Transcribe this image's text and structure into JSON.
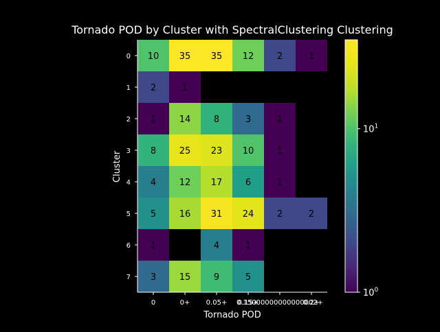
{
  "chart_data": {
    "type": "heatmap",
    "title": "Tornado POD by Cluster with SpectralClustering Clustering",
    "xlabel": "Tornado POD",
    "ylabel": "Cluster",
    "x_categories": [
      "0",
      "0+",
      "0.05+",
      "0.15+",
      "0.15000000000000002+",
      "0.2+"
    ],
    "y_categories": [
      "0",
      "1",
      "2",
      "3",
      "4",
      "5",
      "6",
      "7"
    ],
    "values": [
      [
        10,
        35,
        35,
        12,
        2,
        1
      ],
      [
        2,
        1,
        null,
        null,
        null,
        null
      ],
      [
        1,
        14,
        8,
        3,
        1,
        null
      ],
      [
        8,
        25,
        23,
        10,
        1,
        null
      ],
      [
        4,
        12,
        17,
        6,
        1,
        null
      ],
      [
        5,
        16,
        31,
        24,
        2,
        2
      ],
      [
        1,
        null,
        4,
        1,
        null,
        null
      ],
      [
        3,
        15,
        9,
        5,
        null,
        null
      ]
    ],
    "color_scale": "log",
    "colormap": "viridis",
    "vmin": 1,
    "vmax": 35,
    "colorbar_ticks": [
      {
        "value": 1,
        "base": "10",
        "exp": "0"
      },
      {
        "value": 10,
        "base": "10",
        "exp": "1"
      }
    ],
    "background_color": "#000000",
    "text_color": "#ffffff",
    "cell_label_color": "#000000"
  }
}
